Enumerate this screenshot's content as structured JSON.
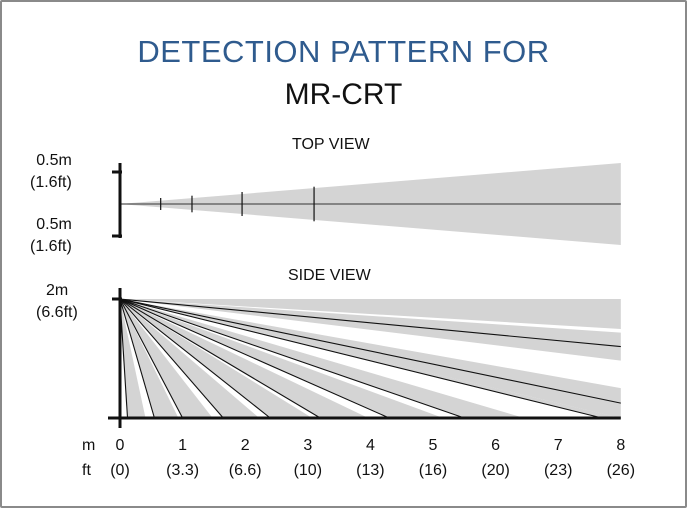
{
  "title": {
    "line1": "DETECTION PATTERN FOR",
    "line2": "MR-CRT"
  },
  "top_view": {
    "label": "TOP VIEW",
    "upper_label_m": "0.5m",
    "upper_label_ft": "(1.6ft)",
    "lower_label_m": "0.5m",
    "lower_label_ft": "(1.6ft)",
    "cone_half_width_m_at_8m": 0.34,
    "center_tick_positions_m": [
      0.65,
      1.15,
      1.95,
      3.1
    ]
  },
  "side_view": {
    "label": "SIDE VIEW",
    "height_label_m": "2m",
    "height_label_ft": "(6.6ft)",
    "beam_floor_reach_m": [
      0.12,
      0.55,
      1.0,
      1.65,
      2.4,
      3.2,
      4.3,
      5.5,
      7.7
    ],
    "beam_end_height_m_at_8m": [
      1.2,
      0.25
    ]
  },
  "axis": {
    "unit_m": "m",
    "unit_ft": "ft",
    "ticks_m": [
      "0",
      "1",
      "2",
      "3",
      "4",
      "5",
      "6",
      "7",
      "8"
    ],
    "ticks_ft": [
      "(0)",
      "(3.3)",
      "(6.6)",
      "(10)",
      "(13)",
      "(16)",
      "(20)",
      "(23)",
      "(26)"
    ]
  },
  "colors": {
    "title_blue": "#2f5b8e",
    "pattern_gray": "#d4d4d4",
    "line": "#111111"
  }
}
